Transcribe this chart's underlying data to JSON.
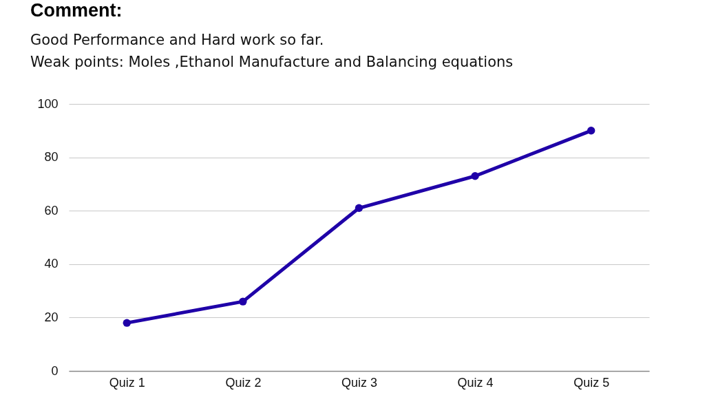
{
  "chart_data": {
    "type": "line",
    "title": "Comment:",
    "subtitle": "Good Performance and Hard work so far.\nWeak points: Moles ,Ethanol Manufacture and Balancing equations",
    "categories": [
      "Quiz 1",
      "Quiz 2",
      "Quiz 3",
      "Quiz 4",
      "Quiz 5"
    ],
    "series": [
      {
        "color": "#1f00a8",
        "values": [
          18,
          26,
          61,
          73,
          90
        ]
      }
    ],
    "ylim": [
      0,
      100
    ],
    "yticks": [
      0,
      20,
      40,
      60,
      80,
      100
    ],
    "grid": "y",
    "marker": "circle",
    "line_style": "solid",
    "legend": false
  }
}
